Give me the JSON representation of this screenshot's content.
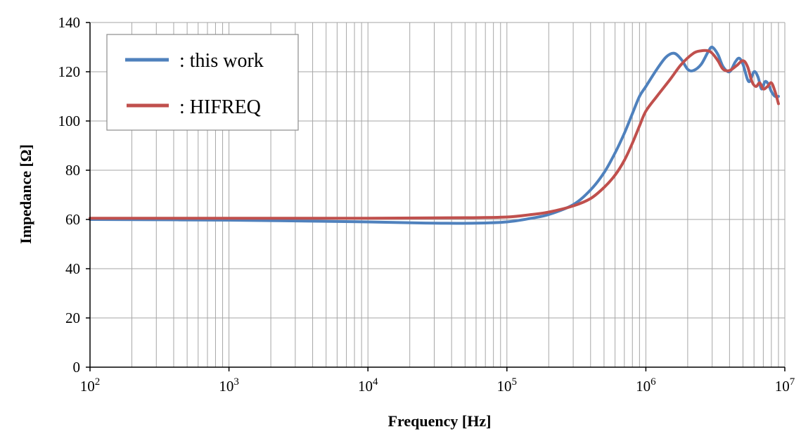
{
  "chart_data": {
    "type": "line",
    "xscale": "log",
    "xlim": [
      100,
      10000000
    ],
    "ylim": [
      0,
      140
    ],
    "yticks": [
      0,
      20,
      40,
      60,
      80,
      100,
      120,
      140
    ],
    "xtick_labels": [
      {
        "base": "10",
        "exp": "2"
      },
      {
        "base": "10",
        "exp": "3"
      },
      {
        "base": "10",
        "exp": "4"
      },
      {
        "base": "10",
        "exp": "5"
      },
      {
        "base": "10",
        "exp": "6"
      },
      {
        "base": "10",
        "exp": "7"
      }
    ],
    "xlabel": "Frequency [Hz]",
    "ylabel": "Impedance [Ω]",
    "grid": true,
    "legend_position": "top-left",
    "series": [
      {
        "name": ": this work",
        "color": "#4f81bd",
        "x": [
          100,
          1000,
          10000,
          30000,
          60000,
          100000,
          150000,
          200000,
          300000,
          400000,
          500000,
          600000,
          700000,
          800000,
          900000,
          1000000,
          1200000,
          1400000,
          1600000,
          1800000,
          2000000,
          2200000,
          2500000,
          2800000,
          3000000,
          3300000,
          3600000,
          4000000,
          4400000,
          4700000,
          5000000,
          5500000,
          6000000,
          6400000,
          6800000,
          7200000,
          7600000,
          8000000,
          8500000,
          9000000
        ],
        "y": [
          60,
          59.7,
          59,
          58.5,
          58.5,
          59,
          60.5,
          62,
          66,
          72,
          79,
          87,
          95,
          103,
          110,
          114,
          121,
          126,
          127.5,
          125,
          121,
          120.5,
          123,
          128,
          130,
          127,
          122,
          120,
          124,
          125.5,
          123,
          116,
          120,
          118,
          113,
          116,
          115,
          112,
          110,
          110
        ]
      },
      {
        "name": ": HIFREQ",
        "color": "#c0504d",
        "x": [
          100,
          1000,
          10000,
          50000,
          100000,
          150000,
          200000,
          300000,
          400000,
          500000,
          600000,
          700000,
          800000,
          900000,
          1000000,
          1200000,
          1500000,
          1800000,
          2200000,
          2500000,
          2800000,
          3000000,
          3300000,
          3600000,
          4000000,
          4500000,
          5000000,
          5400000,
          5800000,
          6200000,
          6600000,
          7000000,
          7500000,
          8000000,
          8500000,
          9000000
        ],
        "y": [
          60.5,
          60.5,
          60.5,
          60.7,
          61,
          62,
          63,
          65.5,
          68.5,
          73,
          78,
          84,
          91,
          98,
          104,
          110,
          117,
          123,
          127.5,
          128.5,
          128.5,
          127.5,
          124.5,
          121,
          120.5,
          122.5,
          124.5,
          122,
          116,
          114,
          115.5,
          113,
          114,
          115.5,
          112,
          107
        ]
      }
    ]
  }
}
